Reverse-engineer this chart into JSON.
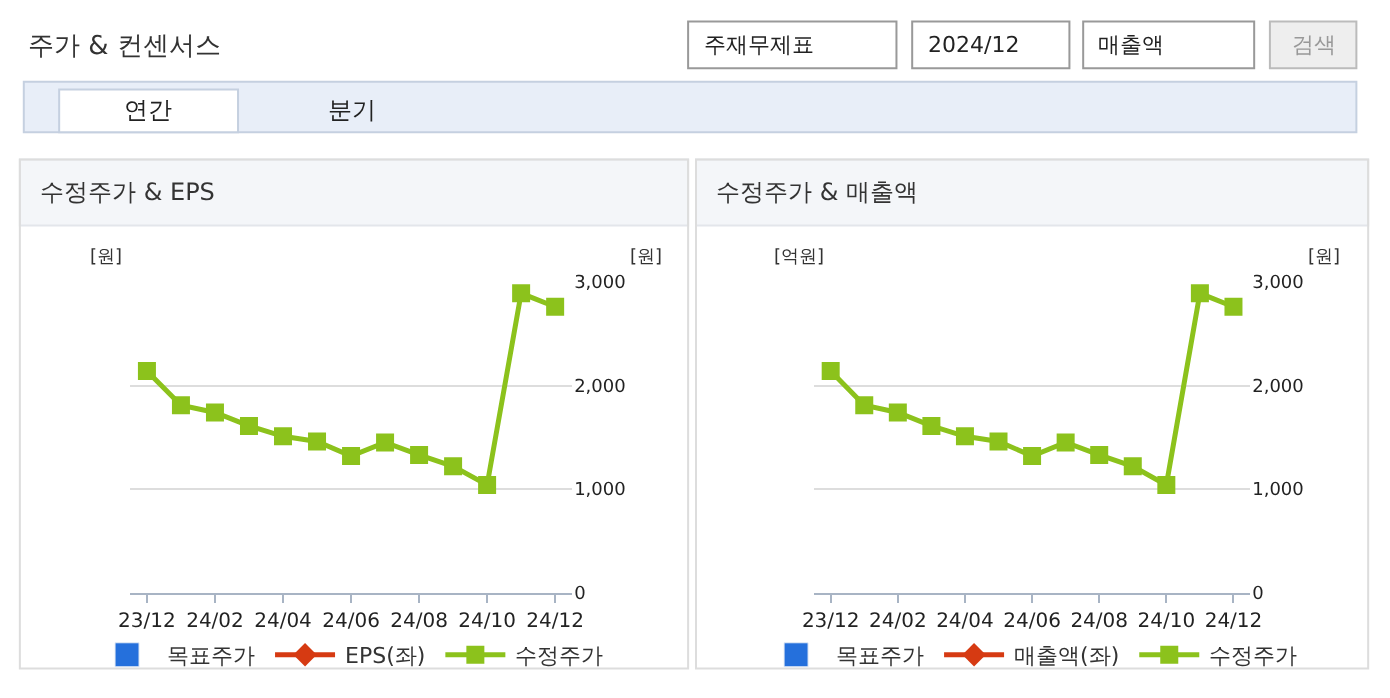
{
  "chart_data": [
    {
      "type": "other",
      "title": "주가 & 컨센서스",
      "annotations": [
        "주재무제표",
        "2024/12",
        "매출액",
        "검색",
        "연간",
        "분기"
      ]
    },
    {
      "type": "line",
      "title": "수정주가 & EPS",
      "ylabel": "[원]",
      "y2label": "[원]",
      "categories": [
        "23/12",
        null,
        "24/02",
        null,
        "24/04",
        null,
        "24/06",
        null,
        "24/08",
        null,
        "24/10",
        null,
        "24/12"
      ],
      "series": [
        {
          "name": "목표주가",
          "type": "bar",
          "color": "#2570dc",
          "values": [
            null,
            null,
            null,
            null,
            null,
            null,
            null,
            null,
            null,
            null,
            null,
            null,
            null
          ]
        },
        {
          "name": "EPS(좌)",
          "type": "line",
          "marker": "diamond",
          "color": "#d63a12",
          "values": [
            null,
            null,
            null,
            null,
            null,
            null,
            null,
            null,
            null,
            null,
            null,
            null,
            null
          ]
        },
        {
          "name": "수정주가",
          "type": "line",
          "marker": "square",
          "axis": "y2",
          "color": "#8cc21c",
          "values": [
            2140,
            1810,
            1740,
            1610,
            1510,
            1460,
            1320,
            1450,
            1330,
            1220,
            1040,
            2890,
            2760
          ]
        }
      ],
      "y2lim": [
        0,
        3000
      ],
      "y2ticks": [
        {
          "value": 0,
          "label": "0"
        },
        {
          "value": 1000,
          "label": "1,000"
        },
        {
          "value": 2000,
          "label": "2,000"
        },
        {
          "value": 3000,
          "label": "3,000"
        }
      ],
      "grid": "y",
      "legend": "bottom"
    },
    {
      "type": "line",
      "title": "수정주가 & 매출액",
      "ylabel": "[억원]",
      "y2label": "[원]",
      "categories": [
        "23/12",
        null,
        "24/02",
        null,
        "24/04",
        null,
        "24/06",
        null,
        "24/08",
        null,
        "24/10",
        null,
        "24/12"
      ],
      "series": [
        {
          "name": "목표주가",
          "type": "bar",
          "color": "#2570dc",
          "values": [
            null,
            null,
            null,
            null,
            null,
            null,
            null,
            null,
            null,
            null,
            null,
            null,
            null
          ]
        },
        {
          "name": "매출액(좌)",
          "type": "line",
          "marker": "diamond",
          "color": "#d63a12",
          "values": [
            null,
            null,
            null,
            null,
            null,
            null,
            null,
            null,
            null,
            null,
            null,
            null,
            null
          ]
        },
        {
          "name": "수정주가",
          "type": "line",
          "marker": "square",
          "axis": "y2",
          "color": "#8cc21c",
          "values": [
            2140,
            1810,
            1740,
            1610,
            1510,
            1460,
            1320,
            1450,
            1330,
            1220,
            1040,
            2890,
            2760
          ]
        }
      ],
      "y2lim": [
        0,
        3000
      ],
      "y2ticks": [
        {
          "value": 0,
          "label": "0"
        },
        {
          "value": 1000,
          "label": "1,000"
        },
        {
          "value": 2000,
          "label": "2,000"
        },
        {
          "value": 3000,
          "label": "3,000"
        }
      ],
      "grid": "y",
      "legend": "bottom"
    }
  ]
}
